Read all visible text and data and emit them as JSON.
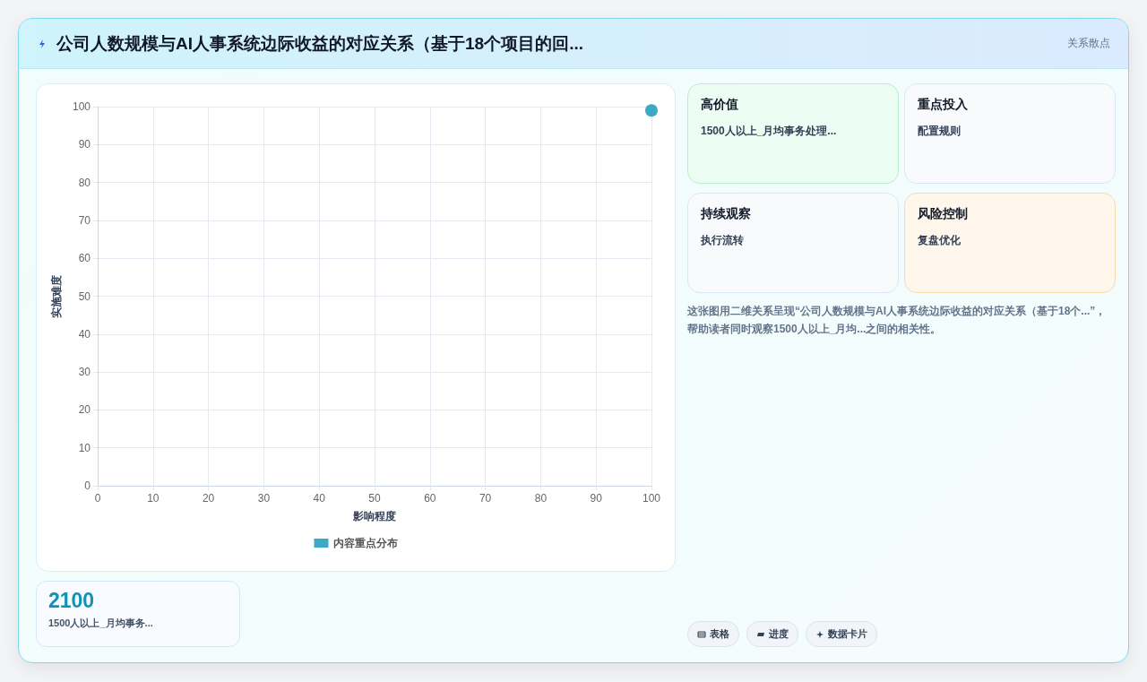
{
  "chart_data": [
    {
      "type": "scatter",
      "xlabel": "影响程度",
      "ylabel": "实施难度",
      "x": [
        100
      ],
      "series": [
        {
          "name": "内容重点分布",
          "color": "#0e93b5",
          "values": [
            99
          ]
        }
      ],
      "xlim": [
        0,
        100
      ],
      "xticks": [
        0,
        10,
        20,
        30,
        40,
        50,
        60,
        70,
        80,
        90,
        100
      ],
      "ylim": [
        0,
        100
      ],
      "yticks": [
        0,
        10,
        20,
        30,
        40,
        50,
        60,
        70,
        80,
        90,
        100
      ],
      "grid": true,
      "legend": "bottom",
      "marker": "circle"
    },
    {
      "type": "other",
      "title": "公司人数规模与AI人事系统边际收益的对应关系（基于18个项目的回...",
      "subtitle": "关系散点",
      "annotations": [
        "高价值",
        "1500人以上_月均事务处理...",
        "重点投入",
        "配置规则",
        "持续观察",
        "执行流转",
        "风险控制",
        "复盘优化",
        "这张图用二维关系呈现“公司人数规模与AI人事系统边际收益的对应关系（基于18个...”，帮助读者同时观察1500人以上_月均...之间的相关性。",
        "2100",
        "1500人以上_月均事务...",
        "表格",
        "进度",
        "数据卡片"
      ]
    }
  ]
}
